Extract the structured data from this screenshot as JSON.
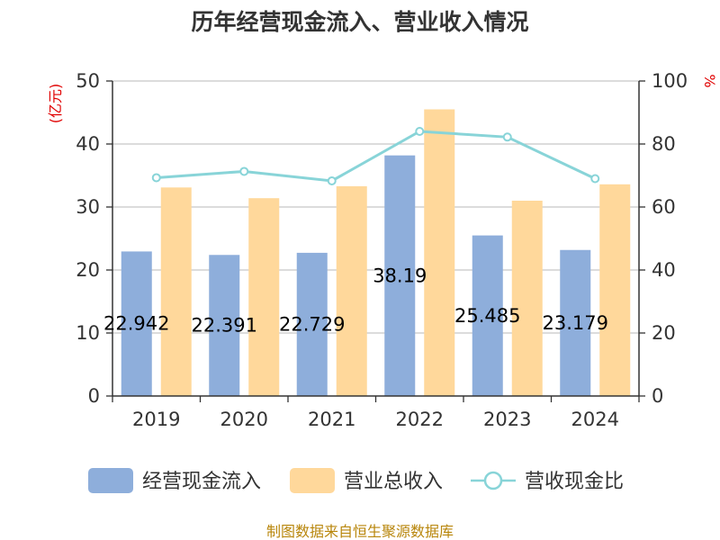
{
  "chart_data": {
    "type": "bar",
    "title": "历年经营现金流入、营业收入情况",
    "categories": [
      "2019",
      "2020",
      "2021",
      "2022",
      "2023",
      "2024"
    ],
    "y_left": {
      "label": "(亿元)",
      "min": 0,
      "max": 50,
      "ticks": [
        "0",
        "10",
        "20",
        "30",
        "40",
        "50"
      ]
    },
    "y_right": {
      "label": "%",
      "min": 0,
      "max": 100,
      "ticks": [
        "0",
        "20",
        "40",
        "60",
        "80",
        "100"
      ]
    },
    "series": [
      {
        "name": "经营现金流入",
        "type": "bar",
        "axis": "left",
        "color": "#8eaedb",
        "values": [
          22.942,
          22.391,
          22.729,
          38.19,
          25.485,
          23.179
        ],
        "labels": [
          "22.942",
          "22.391",
          "22.729",
          "38.19",
          "25.485",
          "23.179"
        ]
      },
      {
        "name": "营业总收入",
        "type": "bar",
        "axis": "left",
        "color": "#ffd89b",
        "values": [
          33.1,
          31.4,
          33.3,
          45.5,
          31.0,
          33.6
        ]
      },
      {
        "name": "营收现金比",
        "type": "line",
        "axis": "right",
        "color": "#88d4d8",
        "values": [
          69.3,
          71.3,
          68.3,
          84.0,
          82.2,
          69.0
        ]
      }
    ],
    "grid": true,
    "legend_position": "bottom"
  },
  "source": "制图数据来自恒生聚源数据库"
}
